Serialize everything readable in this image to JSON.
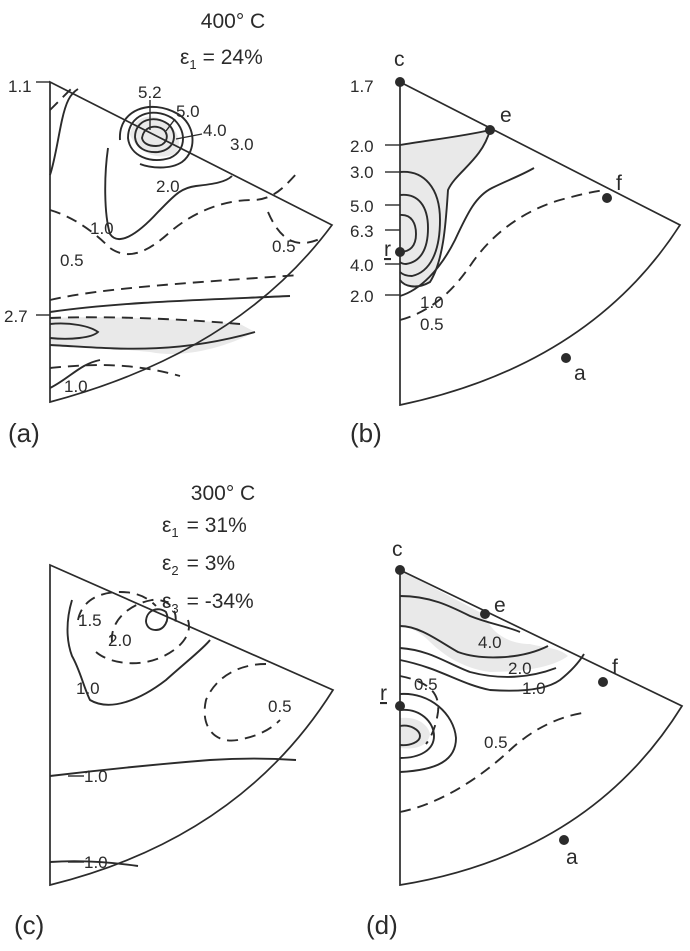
{
  "panel_a": {
    "label": "(a)",
    "header": {
      "temp": "400° C",
      "strain_symbol": "ε",
      "strain_sub": "1",
      "strain_value": "= 24%"
    },
    "contour_labels": [
      "1.1",
      "5.2",
      "5.0",
      "4.0",
      "3.0",
      "2.0",
      "1.0",
      "0.5",
      "0.5",
      "2.7",
      "1.0"
    ]
  },
  "panel_b": {
    "label": "(b)",
    "contour_labels": [
      "1.7",
      "2.0",
      "3.0",
      "5.0",
      "6.3",
      "4.0",
      "2.0",
      "1.0",
      "0.5"
    ],
    "points": [
      "c",
      "e",
      "f",
      "r",
      "a"
    ]
  },
  "panel_c": {
    "label": "(c)",
    "header": {
      "temp": "300° C",
      "strains": [
        {
          "symbol": "ε",
          "sub": "1",
          "value": "=  31%"
        },
        {
          "symbol": "ε",
          "sub": "2",
          "value": "=   3%"
        },
        {
          "symbol": "ε",
          "sub": "3",
          "value": "= -34%"
        }
      ]
    },
    "contour_labels": [
      "1.5",
      "2.0",
      "1.0",
      "0.5",
      "1.0",
      "1.0"
    ]
  },
  "panel_d": {
    "label": "(d)",
    "contour_labels": [
      "4.0",
      "2.0",
      "1.0",
      "0.5",
      "0.5"
    ],
    "points": [
      "c",
      "e",
      "f",
      "r",
      "a"
    ]
  }
}
